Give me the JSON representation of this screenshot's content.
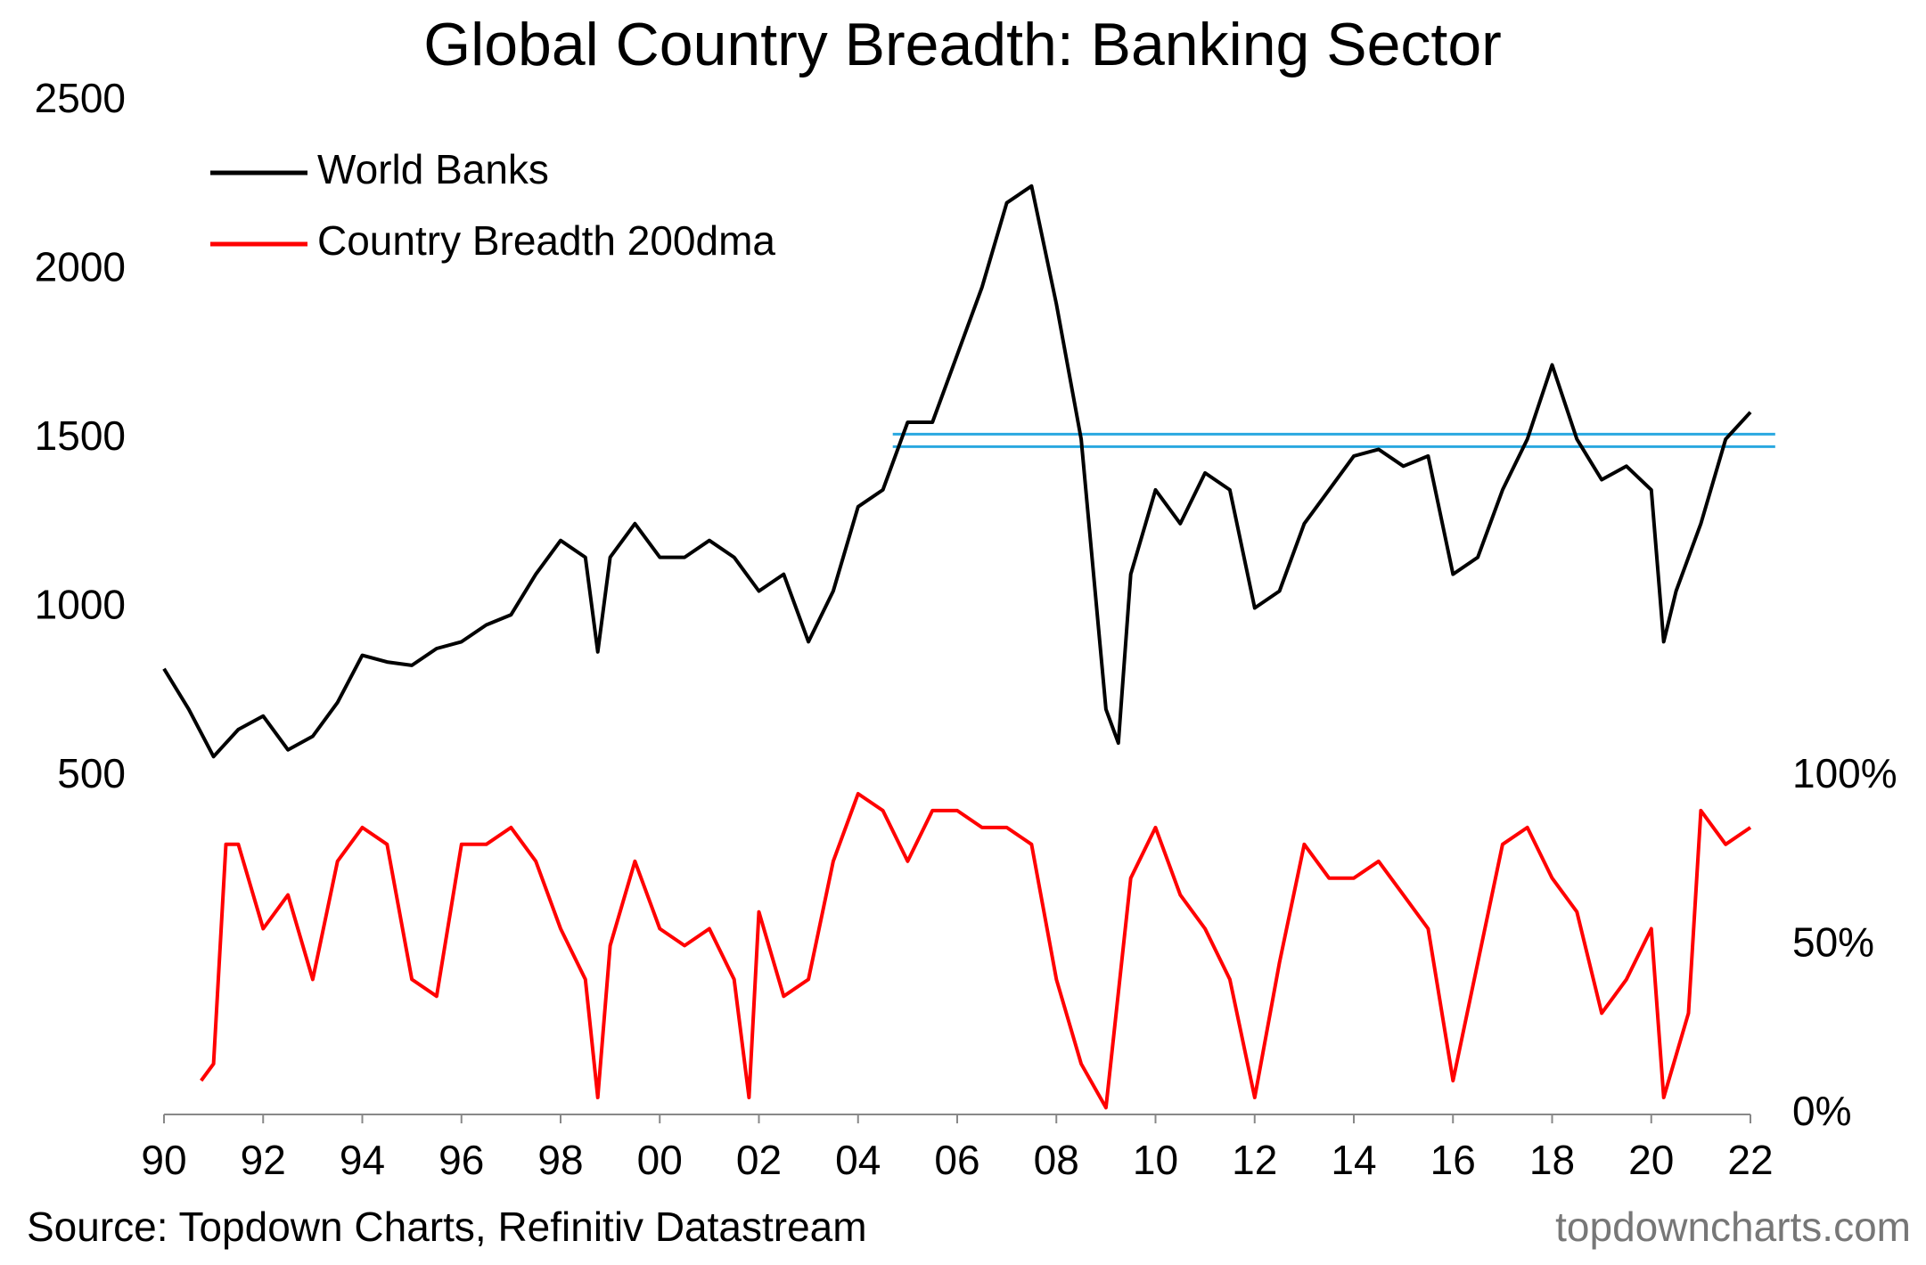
{
  "chart_data": {
    "type": "line",
    "title": "Global Country Breadth: Banking Sector",
    "source": "Source: Topdown Charts, Refinitiv Datastream",
    "watermark": "topdowncharts.com",
    "xlim": [
      1990,
      2022
    ],
    "xticks": [
      {
        "value": 1990,
        "label": "90"
      },
      {
        "value": 1992,
        "label": "92"
      },
      {
        "value": 1994,
        "label": "94"
      },
      {
        "value": 1996,
        "label": "96"
      },
      {
        "value": 1998,
        "label": "98"
      },
      {
        "value": 2000,
        "label": "00"
      },
      {
        "value": 2002,
        "label": "02"
      },
      {
        "value": 2004,
        "label": "04"
      },
      {
        "value": 2006,
        "label": "06"
      },
      {
        "value": 2008,
        "label": "08"
      },
      {
        "value": 2010,
        "label": "10"
      },
      {
        "value": 2012,
        "label": "12"
      },
      {
        "value": 2014,
        "label": "14"
      },
      {
        "value": 2016,
        "label": "16"
      },
      {
        "value": 2018,
        "label": "18"
      },
      {
        "value": 2020,
        "label": "20"
      },
      {
        "value": 2022,
        "label": "22"
      }
    ],
    "ylim": [
      -500,
      2500
    ],
    "yticks": [
      500,
      1000,
      1500,
      2000,
      2500
    ],
    "y2lim": [
      0,
      300
    ],
    "y2ticks": [
      {
        "value": 0,
        "label": "0%"
      },
      {
        "value": 50,
        "label": "50%"
      },
      {
        "value": 100,
        "label": "100%"
      }
    ],
    "legend": "upper left",
    "series": [
      {
        "name": "World Banks",
        "color": "#000000",
        "x": [
          1990,
          1990.5,
          1991,
          1991.5,
          1992,
          1992.5,
          1993,
          1993.5,
          1994,
          1994.5,
          1995,
          1995.5,
          1996,
          1996.5,
          1997,
          1997.5,
          1998,
          1998.5,
          1998.75,
          1999,
          1999.5,
          2000,
          2000.5,
          2001,
          2001.5,
          2002,
          2002.5,
          2003,
          2003.5,
          2004,
          2004.5,
          2005,
          2005.5,
          2006,
          2006.5,
          2007,
          2007.5,
          2008,
          2008.5,
          2009,
          2009.25,
          2009.5,
          2010,
          2010.5,
          2011,
          2011.5,
          2012,
          2012.5,
          2013,
          2013.5,
          2014,
          2014.5,
          2015,
          2015.5,
          2016,
          2016.5,
          2017,
          2017.5,
          2018,
          2018.5,
          2019,
          2019.5,
          2020,
          2020.25,
          2020.5,
          2021,
          2021.5,
          2022
        ],
        "values": [
          820,
          700,
          560,
          640,
          680,
          580,
          620,
          720,
          860,
          840,
          830,
          880,
          900,
          950,
          980,
          1100,
          1200,
          1150,
          870,
          1150,
          1250,
          1150,
          1150,
          1200,
          1150,
          1050,
          1100,
          900,
          1050,
          1300,
          1350,
          1550,
          1550,
          1750,
          1950,
          2200,
          2250,
          1900,
          1500,
          700,
          600,
          1100,
          1350,
          1250,
          1400,
          1350,
          1000,
          1050,
          1250,
          1350,
          1450,
          1470,
          1420,
          1450,
          1100,
          1150,
          1350,
          1500,
          1720,
          1500,
          1380,
          1420,
          1350,
          900,
          1050,
          1250,
          1500,
          1580
        ]
      },
      {
        "name": "Country Breadth 200dma",
        "color": "#ff0000",
        "axis": "y2",
        "x": [
          1990.75,
          1991,
          1991.25,
          1991.5,
          1992,
          1992.5,
          1993,
          1993.5,
          1994,
          1994.5,
          1995,
          1995.5,
          1996,
          1996.5,
          1997,
          1997.5,
          1998,
          1998.5,
          1998.75,
          1999,
          1999.5,
          2000,
          2000.5,
          2001,
          2001.5,
          2001.8,
          2002,
          2002.5,
          2003,
          2003.5,
          2004,
          2004.5,
          2005,
          2005.5,
          2006,
          2006.5,
          2007,
          2007.5,
          2008,
          2008.5,
          2009,
          2009.5,
          2010,
          2010.5,
          2011,
          2011.5,
          2012,
          2012.5,
          2013,
          2013.5,
          2014,
          2014.5,
          2015,
          2015.5,
          2016,
          2016.5,
          2017,
          2017.5,
          2018,
          2018.5,
          2019,
          2019.5,
          2020,
          2020.25,
          2020.75,
          2021,
          2021.5,
          2022
        ],
        "values": [
          10,
          15,
          80,
          80,
          55,
          65,
          40,
          75,
          85,
          80,
          40,
          35,
          80,
          80,
          85,
          75,
          55,
          40,
          5,
          50,
          75,
          55,
          50,
          55,
          40,
          5,
          60,
          35,
          40,
          75,
          95,
          90,
          75,
          90,
          90,
          85,
          85,
          80,
          40,
          15,
          2,
          70,
          85,
          65,
          55,
          40,
          5,
          45,
          80,
          70,
          70,
          75,
          65,
          55,
          10,
          45,
          80,
          85,
          70,
          60,
          30,
          40,
          55,
          5,
          30,
          90,
          80,
          85
        ]
      }
    ],
    "hlines": [
      {
        "value": 1478,
        "x": [
          2004.7,
          2022.5
        ],
        "color": "#29a8e0"
      },
      {
        "value": 1515,
        "x": [
          2004.7,
          2022.5
        ],
        "color": "#29a8e0"
      }
    ]
  }
}
